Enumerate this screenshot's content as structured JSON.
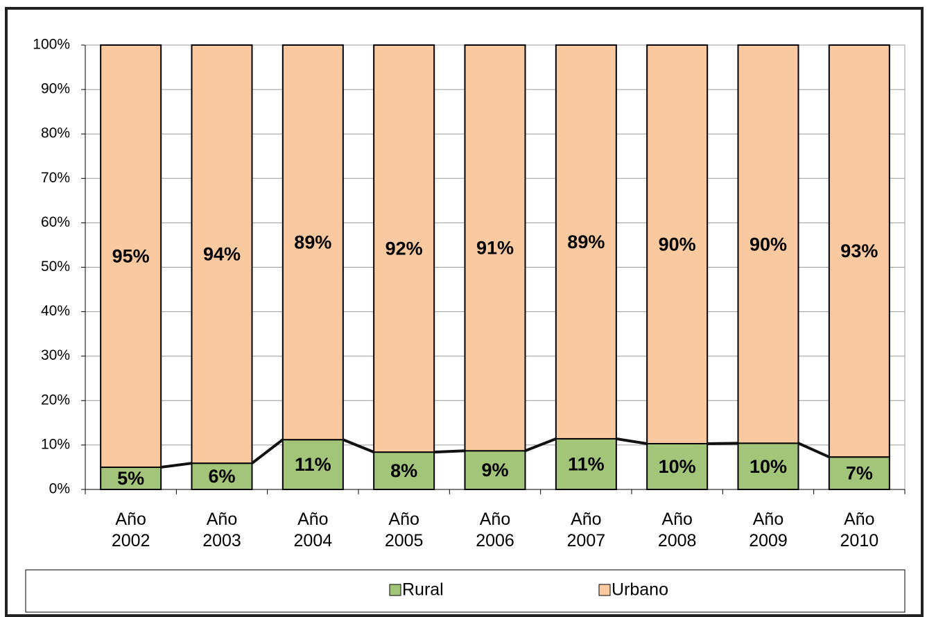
{
  "chart_data": {
    "type": "stacked_bar_100",
    "categories": [
      "Año 2002",
      "Año 2003",
      "Año 2004",
      "Año 2005",
      "Año 2006",
      "Año 2007",
      "Año 2008",
      "Año 2009",
      "Año 2010"
    ],
    "series": [
      {
        "name": "Rural",
        "color": "#a3c57a",
        "values": [
          5,
          5.9,
          11.2,
          8.4,
          8.7,
          11.4,
          10.3,
          10.4,
          7.3
        ],
        "value_labels": [
          "5%",
          "6%",
          "11%",
          "8%",
          "9%",
          "11%",
          "10%",
          "10%",
          "7%"
        ]
      },
      {
        "name": "Urbano",
        "color": "#fbc9a0",
        "values": [
          95,
          94.1,
          88.8,
          91.6,
          91.3,
          88.6,
          89.7,
          89.6,
          92.7
        ],
        "value_labels": [
          "95%",
          "94%",
          "89%",
          "92%",
          "91%",
          "89%",
          "90%",
          "90%",
          "93%"
        ]
      }
    ],
    "ylim": [
      0,
      100
    ],
    "yticks": [
      {
        "value": 0,
        "label": "0%"
      },
      {
        "value": 10,
        "label": "10%"
      },
      {
        "value": 20,
        "label": "20%"
      },
      {
        "value": 30,
        "label": "30%"
      },
      {
        "value": 40,
        "label": "40%"
      },
      {
        "value": 50,
        "label": "50%"
      },
      {
        "value": 60,
        "label": "60%"
      },
      {
        "value": 70,
        "label": "70%"
      },
      {
        "value": 80,
        "label": "80%"
      },
      {
        "value": 90,
        "label": "90%"
      },
      {
        "value": 100,
        "label": "100%"
      }
    ],
    "grid": true,
    "legend": "bottom"
  }
}
